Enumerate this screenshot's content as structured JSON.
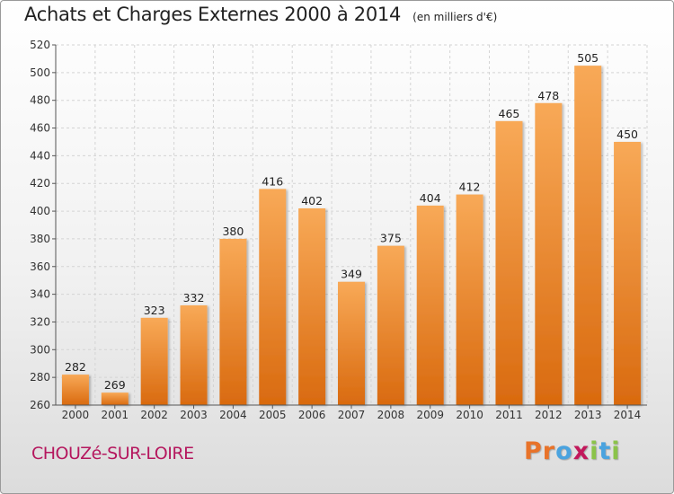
{
  "title": "Achats et Charges Externes 2000 à 2014",
  "subtitle": "(en milliers d'€)",
  "commune": "CHOUZé-SUR-LOIRE",
  "logo": {
    "text": "Proxiti",
    "letters": [
      {
        "char": "P",
        "color": "#e8732a"
      },
      {
        "char": "r",
        "color": "#e8732a"
      },
      {
        "char": "o",
        "color": "#4aa3df"
      },
      {
        "char": "x",
        "color": "#c2185b"
      },
      {
        "char": "i",
        "color": "#8bc34a"
      },
      {
        "char": "t",
        "color": "#4aa3df"
      },
      {
        "char": "i",
        "color": "#8bc34a"
      }
    ]
  },
  "colors": {
    "bar_top": "#f8a957",
    "bar_bottom": "#d96a0f",
    "grid": "#d4d4d4",
    "axis": "#555555"
  },
  "chart_data": {
    "type": "bar",
    "categories": [
      "2000",
      "2001",
      "2002",
      "2003",
      "2004",
      "2005",
      "2006",
      "2007",
      "2008",
      "2009",
      "2010",
      "2011",
      "2012",
      "2013",
      "2014"
    ],
    "values": [
      282,
      269,
      323,
      332,
      380,
      416,
      402,
      349,
      375,
      404,
      412,
      465,
      478,
      505,
      450
    ],
    "title": "Achats et Charges Externes 2000 à 2014",
    "unit": "(en milliers d'€)",
    "ylim": [
      260,
      520
    ],
    "yticks": [
      260,
      280,
      300,
      320,
      340,
      360,
      380,
      400,
      420,
      440,
      460,
      480,
      500,
      520
    ],
    "grid": true,
    "data_labels": true
  }
}
